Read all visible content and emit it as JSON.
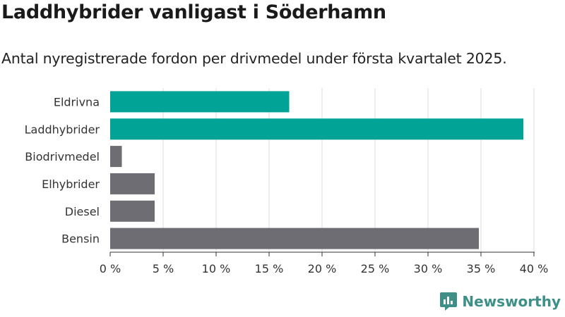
{
  "header": {
    "title": "Laddhybrider vanligast i Söderhamn",
    "subtitle": "Antal nyregistrerade fordon per drivmedel under första kvartalet 2025."
  },
  "brand": {
    "name": "Newsworthy",
    "icon": "newsworthy-logo-icon",
    "color": "#3d8f88"
  },
  "chart_data": {
    "type": "bar",
    "orientation": "horizontal",
    "title": "Laddhybrider vanligast i Söderhamn",
    "subtitle": "Antal nyregistrerade fordon per drivmedel under första kvartalet 2025.",
    "categories": [
      "Eldrivna",
      "Laddhybrider",
      "Biodrivmedel",
      "Elhybrider",
      "Diesel",
      "Bensin"
    ],
    "values": [
      16.9,
      39.0,
      1.1,
      4.2,
      4.2,
      34.8
    ],
    "bar_colors": [
      "#00a396",
      "#00a396",
      "#6e6d74",
      "#6e6d74",
      "#6e6d74",
      "#6e6d74"
    ],
    "xlim": [
      0,
      40
    ],
    "xticks": [
      0,
      5,
      10,
      15,
      20,
      25,
      30,
      35,
      40
    ],
    "tick_labels": [
      "0 %",
      "5 %",
      "10 %",
      "15 %",
      "20 %",
      "25 %",
      "30 %",
      "35 %",
      "40 %"
    ],
    "grid": true,
    "xlabel": "",
    "ylabel": ""
  }
}
